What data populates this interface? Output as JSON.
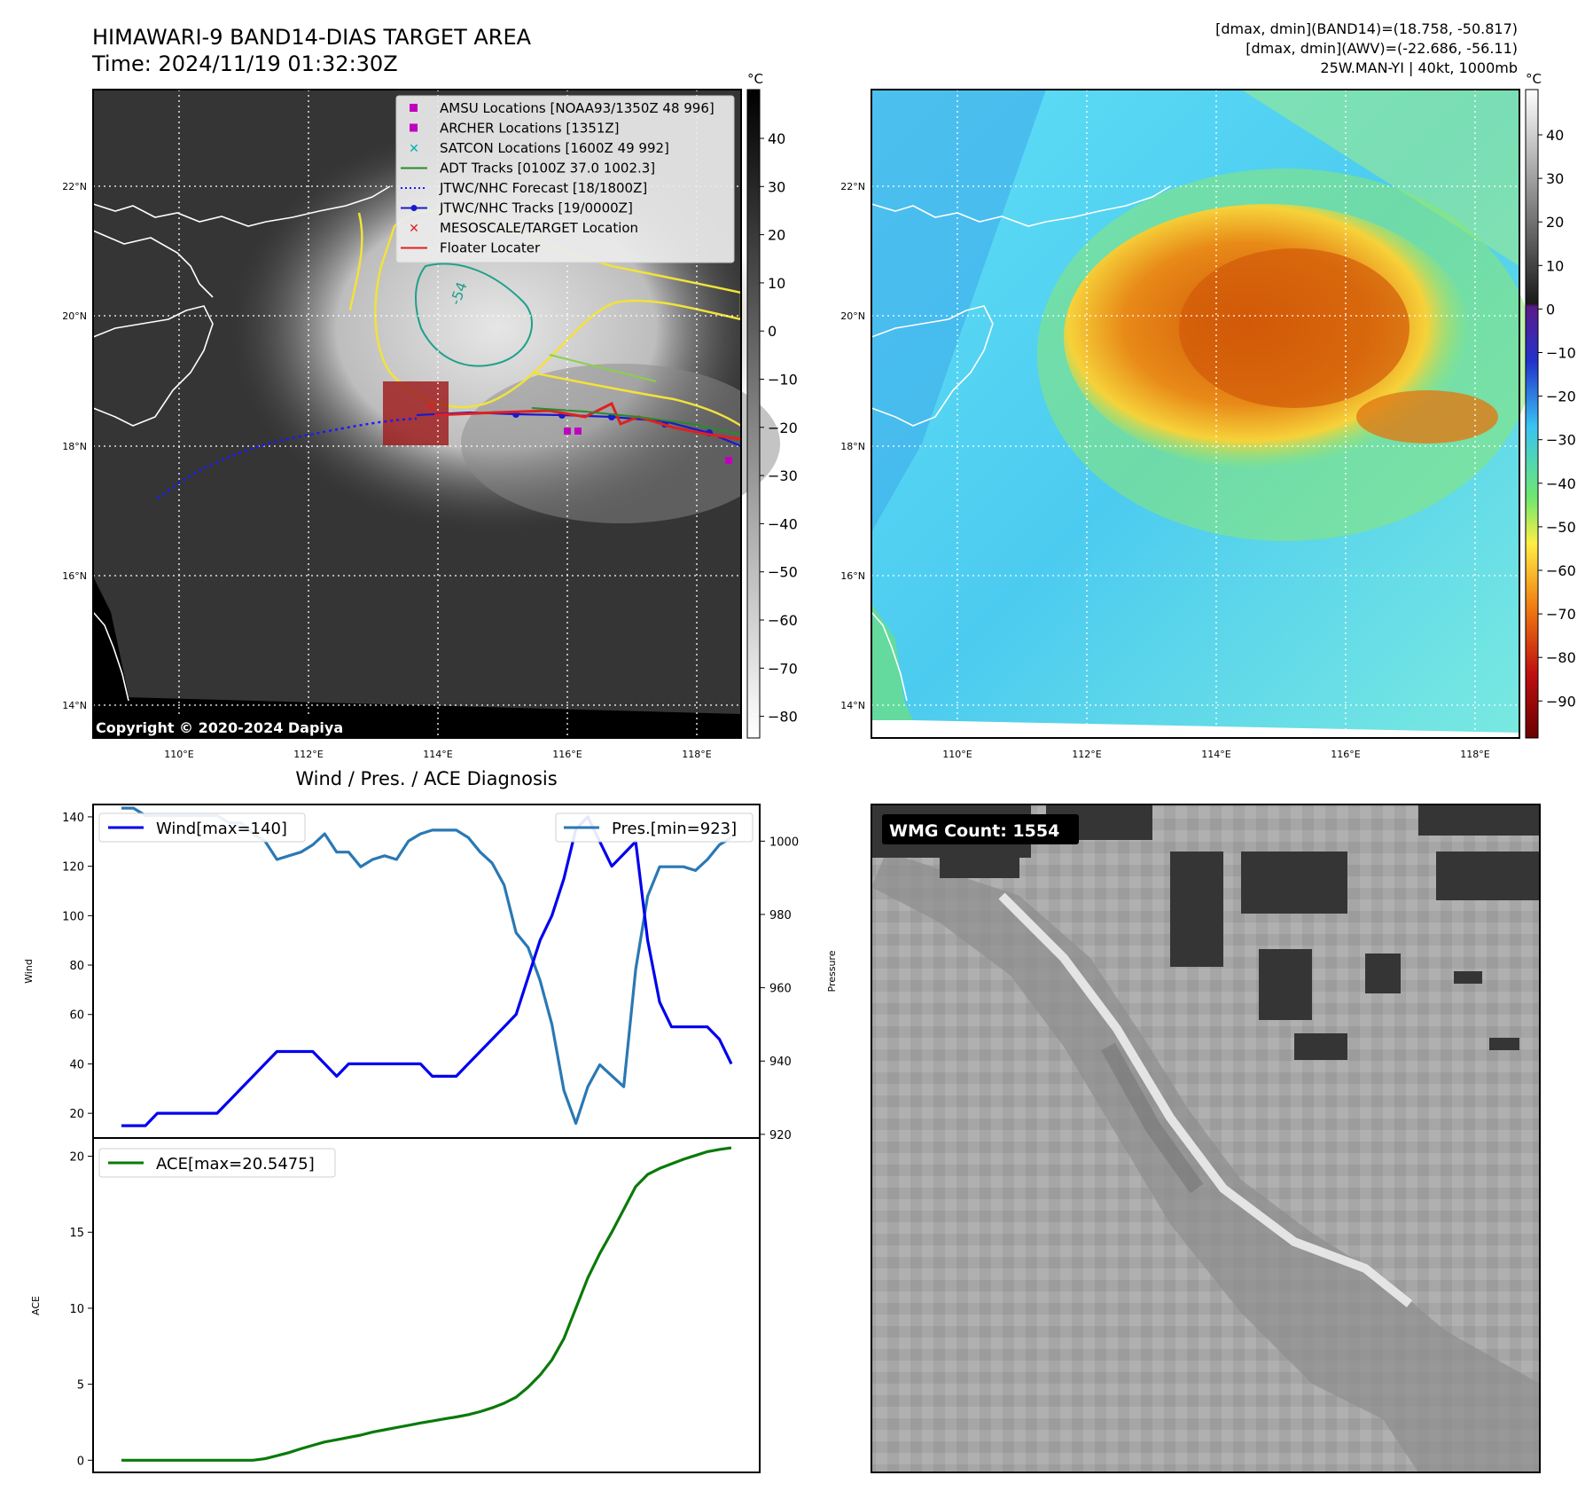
{
  "header": {
    "title": "HIMAWARI-9 BAND14-DIAS TARGET AREA",
    "time": "Time: 2024/11/19 01:32:30Z",
    "stats_band14": "[dmax, dmin](BAND14)=(18.758, -50.817)",
    "stats_awv": "[dmax, dmin](AWV)=(-22.686, -56.11)",
    "storm_info": "25W.MAN-YI | 40kt, 1000mb"
  },
  "ir_map": {
    "lat_labels": [
      "22°N",
      "20°N",
      "18°N",
      "16°N",
      "14°N"
    ],
    "lon_labels": [
      "110°E",
      "112°E",
      "114°E",
      "116°E",
      "118°E"
    ],
    "colorbar_unit": "°C",
    "colorbar_ticks": [
      "40",
      "30",
      "20",
      "10",
      "0",
      "−10",
      "−20",
      "−30",
      "−40",
      "−50",
      "−60",
      "−70",
      "−80"
    ],
    "copyright": "Copyright © 2020-2024 Dapiya",
    "contour_label": "-54",
    "legend": [
      {
        "label": "AMSU Locations [NOAA93/1350Z 48 996]",
        "marker": "square",
        "color": "#c000c0"
      },
      {
        "label": "ARCHER Locations [1351Z]",
        "marker": "square",
        "color": "#c000c0"
      },
      {
        "label": "SATCON Locations [1600Z 49 992]",
        "marker": "x",
        "color": "#00b0b0"
      },
      {
        "label": "ADT Tracks [0100Z 37.0 1002.3]",
        "marker": "line",
        "color": "#2a8a2a"
      },
      {
        "label": "JTWC/NHC Forecast [18/1800Z]",
        "marker": "dotted",
        "color": "#1a1aff"
      },
      {
        "label": "JTWC/NHC Tracks [19/0000Z]",
        "marker": "line-dot",
        "color": "#1a1acc"
      },
      {
        "label": "MESOSCALE/TARGET Location",
        "marker": "x",
        "color": "#e02020"
      },
      {
        "label": "Floater Locater",
        "marker": "line",
        "color": "#e02020"
      }
    ]
  },
  "awv_map": {
    "lat_labels": [
      "22°N",
      "20°N",
      "18°N",
      "16°N",
      "14°N"
    ],
    "lon_labels": [
      "110°E",
      "112°E",
      "114°E",
      "116°E",
      "118°E"
    ],
    "colorbar_unit": "°C",
    "colorbar_ticks": [
      "40",
      "30",
      "20",
      "10",
      "0",
      "−10",
      "−20",
      "−30",
      "−40",
      "−50",
      "−60",
      "−70",
      "−80",
      "−90"
    ]
  },
  "diagnosis": {
    "title": "Wind / Pres. / ACE Diagnosis",
    "wind_ylabel": "Wind",
    "pressure_ylabel": "Pressure",
    "ace_ylabel": "ACE",
    "wind_legend": "Wind[max=140]",
    "pres_legend": "Pres.[min=923]",
    "ace_legend": "ACE[max=20.5475]",
    "wind_ticks": [
      "20",
      "40",
      "60",
      "80",
      "100",
      "120",
      "140"
    ],
    "pres_ticks": [
      "920",
      "940",
      "960",
      "980",
      "1000"
    ],
    "ace_ticks": [
      "0",
      "5",
      "10",
      "15",
      "20"
    ],
    "colors": {
      "wind": "#0000ee",
      "pressure": "#2a78b4",
      "ace": "#0a7a0a"
    }
  },
  "wmg": {
    "label": "WMG Count: 1554"
  },
  "chart_data": [
    {
      "type": "line",
      "title": "Wind / Pres. / ACE Diagnosis",
      "x": [
        0,
        1,
        2,
        3,
        4,
        5,
        6,
        7,
        8,
        9,
        10,
        11,
        12,
        13,
        14,
        15,
        16,
        17,
        18,
        19,
        20,
        21,
        22,
        23,
        24,
        25,
        26,
        27,
        28,
        29,
        30,
        31,
        32,
        33,
        34,
        35,
        36,
        37,
        38,
        39,
        40,
        41,
        42,
        43,
        44,
        45,
        46,
        47,
        48,
        49,
        50,
        51
      ],
      "series": [
        {
          "name": "Wind[max=140]",
          "axis": "left",
          "ylabel": "Wind",
          "ylim": [
            10,
            145
          ],
          "values": [
            15,
            15,
            15,
            20,
            20,
            20,
            20,
            20,
            20,
            25,
            30,
            35,
            40,
            45,
            45,
            45,
            45,
            40,
            35,
            40,
            40,
            40,
            40,
            40,
            40,
            40,
            35,
            35,
            35,
            40,
            45,
            50,
            55,
            60,
            75,
            90,
            100,
            115,
            135,
            140,
            130,
            120,
            125,
            130,
            90,
            65,
            55,
            55,
            55,
            55,
            50,
            40
          ]
        },
        {
          "name": "Pres.[min=923]",
          "axis": "right",
          "ylabel": "Pressure",
          "ylim": [
            919,
            1010
          ],
          "values": [
            1009,
            1009,
            1007,
            1007,
            1007,
            1007,
            1007,
            1007,
            1007,
            1005,
            1005,
            1002,
            1000,
            995,
            996,
            997,
            999,
            1002,
            997,
            997,
            993,
            995,
            996,
            995,
            1000,
            1002,
            1003,
            1003,
            1003,
            1001,
            997,
            994,
            988,
            975,
            971,
            962,
            950,
            932,
            923,
            933,
            939,
            936,
            933,
            965,
            985,
            993,
            993,
            993,
            992,
            995,
            999,
            1001
          ]
        },
        {
          "name": "ACE[max=20.5475]",
          "axis": "ace",
          "ylabel": "ACE",
          "ylim": [
            -0.8,
            21.2
          ],
          "values": [
            0,
            0,
            0,
            0,
            0,
            0,
            0,
            0,
            0,
            0,
            0,
            0,
            0.1,
            0.3,
            0.5,
            0.75,
            0.98,
            1.2,
            1.35,
            1.5,
            1.65,
            1.85,
            2.0,
            2.15,
            2.3,
            2.45,
            2.58,
            2.72,
            2.85,
            3.0,
            3.2,
            3.45,
            3.75,
            4.15,
            4.8,
            5.6,
            6.6,
            8.0,
            10.0,
            12.0,
            13.6,
            15.0,
            16.5,
            18.0,
            18.8,
            19.2,
            19.5,
            19.8,
            20.05,
            20.3,
            20.45,
            20.55
          ]
        }
      ]
    }
  ]
}
